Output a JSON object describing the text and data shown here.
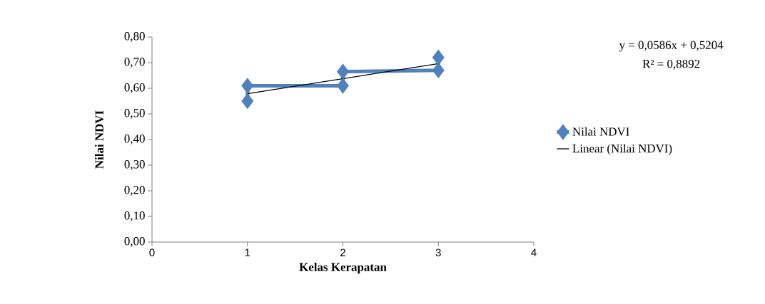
{
  "chart_data": {
    "type": "line",
    "xlabel": "Kelas Kerapatan",
    "ylabel": "Nilai NDVI",
    "annotations": [
      "y = 0,0586x + 0,5204",
      "R² = 0,8892"
    ],
    "series": [
      {
        "name": "Nilai NDVI",
        "color": "#4f81bd",
        "marker": "diamond",
        "line_style": "solid",
        "x": [
          1,
          1,
          2,
          2,
          3,
          3
        ],
        "values": [
          0.55,
          0.61,
          0.61,
          0.665,
          0.67,
          0.72
        ]
      },
      {
        "name": "Linear (Nilai NDVI)",
        "color": "#000000",
        "marker": "none",
        "line_style": "solid",
        "x": [
          1,
          3
        ],
        "values": [
          0.579,
          0.696
        ]
      }
    ],
    "xlim": [
      0,
      4
    ],
    "xticks": [
      0,
      1,
      2,
      3,
      4
    ],
    "ylim": [
      0,
      0.8
    ],
    "yticks": [
      {
        "value": 0,
        "label": "0,00"
      },
      {
        "value": 0.1,
        "label": "0,10"
      },
      {
        "value": 0.2,
        "label": "0,20"
      },
      {
        "value": 0.3,
        "label": "0,30"
      },
      {
        "value": 0.4,
        "label": "0,40"
      },
      {
        "value": 0.5,
        "label": "0,50"
      },
      {
        "value": 0.6,
        "label": "0,60"
      },
      {
        "value": 0.7,
        "label": "0,70"
      },
      {
        "value": 0.8,
        "label": "0,80"
      }
    ],
    "grid": false,
    "legend": "right"
  }
}
